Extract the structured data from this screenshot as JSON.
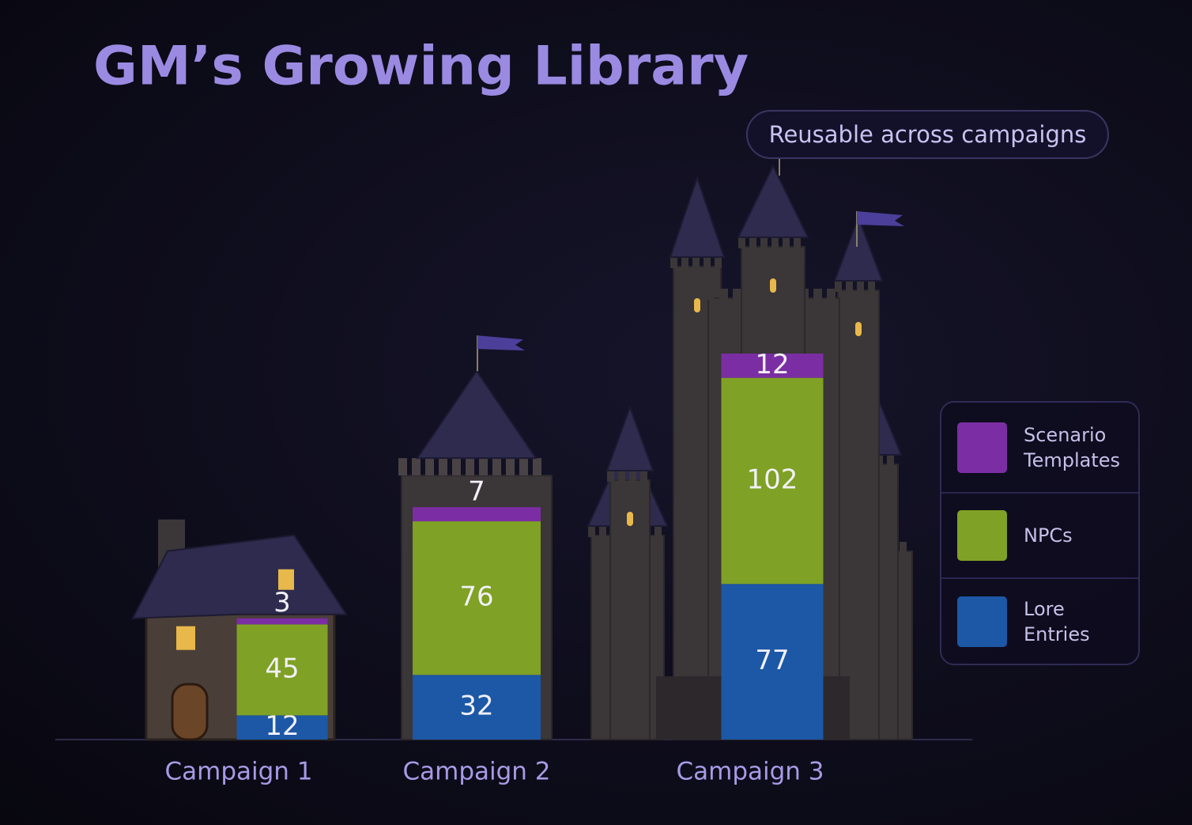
{
  "chart_data": {
    "type": "bar",
    "stacked": true,
    "title": "GM’s Growing Library",
    "annotation": "Reusable across campaigns",
    "categories": [
      "Campaign 1",
      "Campaign 2",
      "Campaign 3"
    ],
    "series": [
      {
        "name": "Scenario Templates",
        "color": "#7b2ea3",
        "values": [
          3,
          7,
          12
        ]
      },
      {
        "name": "NPCs",
        "color": "#7fa125",
        "values": [
          45,
          76,
          102
        ]
      },
      {
        "name": "Lore Entries",
        "color": "#1c58a6",
        "values": [
          12,
          32,
          77
        ]
      }
    ]
  }
}
